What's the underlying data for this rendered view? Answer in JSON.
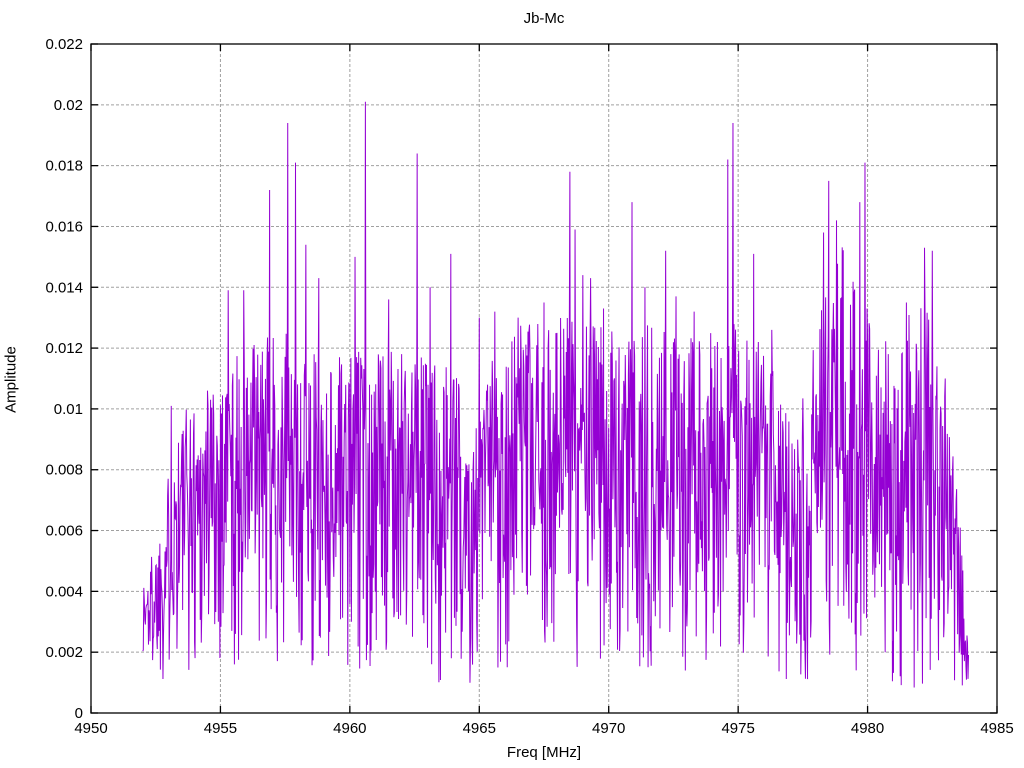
{
  "page": {
    "background": "#ffffff"
  },
  "chart_data": {
    "type": "line",
    "title": "Jb-Mc",
    "xlabel": "Freq [MHz]",
    "ylabel": "Amplitude",
    "xlim": [
      4950,
      4985
    ],
    "ylim": [
      0,
      0.022
    ],
    "xticks": {
      "values": [
        4950,
        4955,
        4960,
        4965,
        4970,
        4975,
        4980,
        4985
      ],
      "labels": [
        "4950",
        "4955",
        "4960",
        "4965",
        "4970",
        "4975",
        "4980",
        "4985"
      ]
    },
    "yticks": {
      "values": [
        0,
        0.002,
        0.004,
        0.006,
        0.008,
        0.01,
        0.012,
        0.014,
        0.016,
        0.018,
        0.02,
        0.022
      ],
      "labels": [
        "0",
        "0.002",
        "0.004",
        "0.006",
        "0.008",
        "0.01",
        "0.012",
        "0.014",
        "0.016",
        "0.018",
        "0.02",
        "0.022"
      ]
    },
    "grid": {
      "visible": true,
      "style": "dashed",
      "color": "#a0a0a0"
    },
    "line_color": "#9400d3",
    "frame_color": "#000000",
    "signal": {
      "description": "dense noisy amplitude spectrum, single series, spans 4952.0-4983.9 MHz",
      "x_start": 4952.0,
      "x_end": 4983.9,
      "dx": 0.02,
      "seed": 1337,
      "noise_floor": 0.0008,
      "shape_power": 0.65,
      "envelope_keyframes": [
        [
          4952.0,
          0.0045
        ],
        [
          4952.6,
          0.006
        ],
        [
          4953.4,
          0.01
        ],
        [
          4954.2,
          0.0105
        ],
        [
          4955.0,
          0.0115
        ],
        [
          4956.0,
          0.012
        ],
        [
          4957.0,
          0.0125
        ],
        [
          4958.0,
          0.0125
        ],
        [
          4959.0,
          0.0115
        ],
        [
          4960.0,
          0.012
        ],
        [
          4961.0,
          0.012
        ],
        [
          4962.0,
          0.0118
        ],
        [
          4963.0,
          0.012
        ],
        [
          4964.0,
          0.0115
        ],
        [
          4964.8,
          0.0095
        ],
        [
          4965.5,
          0.012
        ],
        [
          4966.5,
          0.0128
        ],
        [
          4967.5,
          0.0128
        ],
        [
          4968.5,
          0.0135
        ],
        [
          4969.5,
          0.013
        ],
        [
          4970.5,
          0.0125
        ],
        [
          4971.5,
          0.0128
        ],
        [
          4972.5,
          0.0125
        ],
        [
          4973.5,
          0.0123
        ],
        [
          4974.5,
          0.0128
        ],
        [
          4975.5,
          0.0128
        ],
        [
          4976.5,
          0.011
        ],
        [
          4977.2,
          0.009
        ],
        [
          4978.0,
          0.013
        ],
        [
          4979.0,
          0.0155
        ],
        [
          4980.0,
          0.014
        ],
        [
          4981.0,
          0.0118
        ],
        [
          4982.0,
          0.014
        ],
        [
          4982.8,
          0.0125
        ],
        [
          4983.3,
          0.009
        ],
        [
          4983.7,
          0.005
        ],
        [
          4983.9,
          0.002
        ]
      ],
      "peaks": [
        [
          4953.1,
          0.0101
        ],
        [
          4954.5,
          0.0106
        ],
        [
          4955.3,
          0.0139
        ],
        [
          4955.9,
          0.0139
        ],
        [
          4956.3,
          0.0121
        ],
        [
          4956.9,
          0.0172
        ],
        [
          4957.6,
          0.0194
        ],
        [
          4957.9,
          0.0181
        ],
        [
          4958.3,
          0.0154
        ],
        [
          4958.8,
          0.0143
        ],
        [
          4959.6,
          0.0117
        ],
        [
          4960.2,
          0.015
        ],
        [
          4960.6,
          0.0201
        ],
        [
          4961.5,
          0.0136
        ],
        [
          4962.0,
          0.0118
        ],
        [
          4962.6,
          0.0184
        ],
        [
          4963.1,
          0.014
        ],
        [
          4963.9,
          0.0151
        ],
        [
          4965.0,
          0.013
        ],
        [
          4965.6,
          0.0132
        ],
        [
          4966.5,
          0.013
        ],
        [
          4967.5,
          0.0135
        ],
        [
          4968.5,
          0.0178
        ],
        [
          4968.7,
          0.0159
        ],
        [
          4969.0,
          0.0144
        ],
        [
          4969.3,
          0.0143
        ],
        [
          4969.8,
          0.0133
        ],
        [
          4970.9,
          0.0168
        ],
        [
          4971.4,
          0.014
        ],
        [
          4972.2,
          0.0152
        ],
        [
          4972.6,
          0.0137
        ],
        [
          4973.3,
          0.0132
        ],
        [
          4974.2,
          0.0122
        ],
        [
          4974.6,
          0.0182
        ],
        [
          4974.8,
          0.0194
        ],
        [
          4975.6,
          0.0151
        ],
        [
          4976.3,
          0.0126
        ],
        [
          4978.3,
          0.0158
        ],
        [
          4978.5,
          0.0175
        ],
        [
          4978.8,
          0.0162
        ],
        [
          4979.7,
          0.0168
        ],
        [
          4979.9,
          0.0181
        ],
        [
          4980.8,
          0.0118
        ],
        [
          4981.5,
          0.0135
        ],
        [
          4982.2,
          0.0153
        ],
        [
          4982.5,
          0.0152
        ],
        [
          4983.0,
          0.011
        ]
      ]
    }
  }
}
